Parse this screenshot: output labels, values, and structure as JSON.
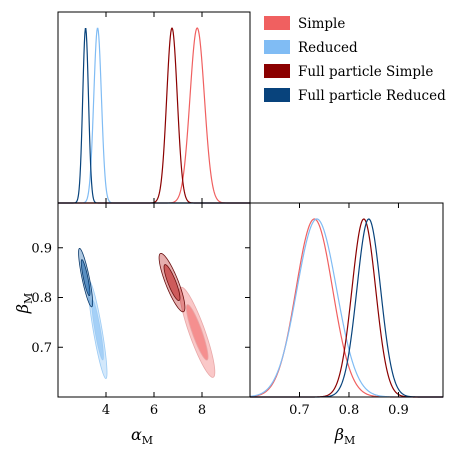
{
  "chart_data": {
    "type": "corner",
    "legend": {
      "placement": "top-right",
      "entries": [
        {
          "label": "Simple",
          "color": "#f06060"
        },
        {
          "label": "Reduced",
          "color": "#80bcf4"
        },
        {
          "label": "Full particle Simple",
          "color": "#8b0000"
        },
        {
          "label": "Full particle Reduced",
          "color": "#08437c"
        }
      ]
    },
    "axes": {
      "alpha": {
        "label_main": "α",
        "label_sub": "M",
        "lim": [
          2.0,
          10.0
        ],
        "ticks": [
          4,
          6,
          8
        ],
        "tick_labels": [
          "4",
          "6",
          "8"
        ]
      },
      "beta": {
        "label_main": "β",
        "label_sub": "M",
        "lim": [
          0.6,
          0.99
        ],
        "ticks": [
          0.7,
          0.8,
          0.9
        ],
        "tick_labels": [
          "0.7",
          "0.8",
          "0.9"
        ]
      }
    },
    "series": [
      {
        "name": "Simple",
        "color": "#f06060",
        "fill": "#f06060",
        "outline": "#e8a8a8",
        "alpha_mean": 7.8,
        "alpha_sd": 0.3,
        "beta_mean": 0.73,
        "beta_sd": 0.037,
        "rho": -0.88,
        "draw_order": 0
      },
      {
        "name": "Reduced",
        "color": "#80bcf4",
        "fill": "#80bcf4",
        "outline": "#9ccbf4",
        "alpha_mean": 3.65,
        "alpha_sd": 0.16,
        "beta_mean": 0.735,
        "beta_sd": 0.04,
        "rho": -0.88,
        "draw_order": 1
      },
      {
        "name": "Full particle Simple",
        "color": "#8b0000",
        "fill": "#b81818",
        "outline": "#6a1010",
        "alpha_mean": 6.75,
        "alpha_sd": 0.22,
        "beta_mean": 0.83,
        "beta_sd": 0.024,
        "rho": -0.85,
        "draw_order": 2
      },
      {
        "name": "Full particle Reduced",
        "color": "#08437c",
        "fill": "#1660a8",
        "outline": "#0a3a6c",
        "alpha_mean": 3.15,
        "alpha_sd": 0.12,
        "beta_mean": 0.84,
        "beta_sd": 0.024,
        "rho": -0.85,
        "draw_order": 3
      }
    ],
    "contour_levels": [
      0.68,
      0.95
    ]
  }
}
